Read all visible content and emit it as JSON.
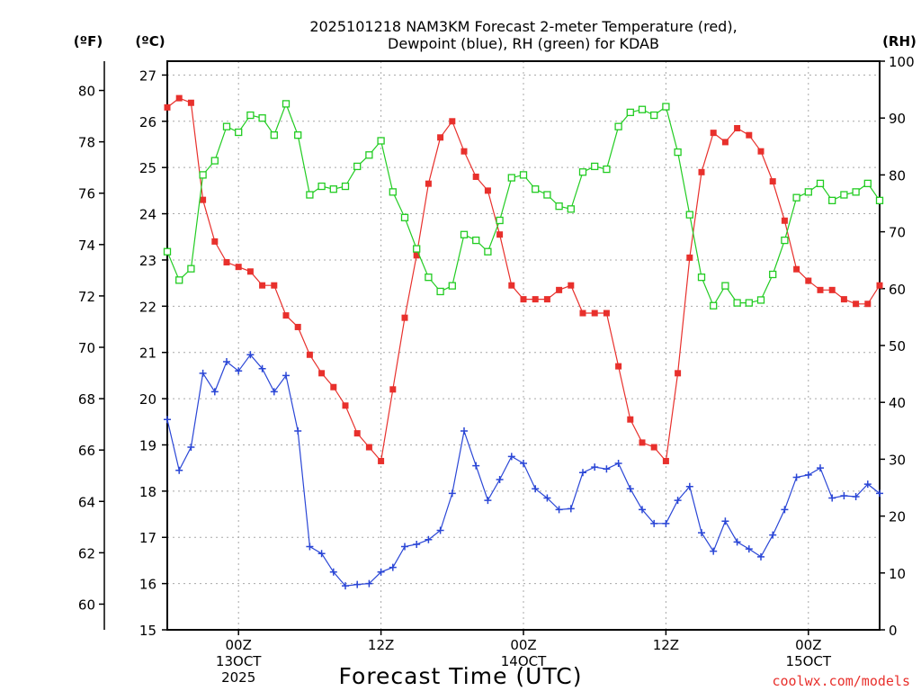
{
  "chart_data": {
    "type": "line",
    "title_line1": "2025101218 NAM3KM Forecast 2-meter Temperature (red),",
    "title_line2": "Dewpoint (blue), RH (green) for KDAB",
    "unit_f": "(ºF)",
    "unit_c": "(ºC)",
    "unit_rh": "(RH)",
    "xlabel": "Forecast Time (UTC)",
    "credit": "coolwx.com/models",
    "c_range": [
      15,
      27.3
    ],
    "rh_range": [
      0,
      100
    ],
    "f_ticks": [
      "60",
      "62",
      "64",
      "66",
      "68",
      "70",
      "72",
      "74",
      "76",
      "78",
      "80"
    ],
    "c_ticks": [
      "15",
      "16",
      "17",
      "18",
      "19",
      "20",
      "21",
      "22",
      "23",
      "24",
      "25",
      "26",
      "27"
    ],
    "rh_ticks": [
      "0",
      "10",
      "20",
      "30",
      "40",
      "50",
      "60",
      "70",
      "80",
      "90",
      "100"
    ],
    "x_ticks": [
      {
        "hour": 6,
        "label": "00Z",
        "sub1": "13OCT",
        "sub2": "2025"
      },
      {
        "hour": 18,
        "label": "12Z",
        "sub1": "",
        "sub2": ""
      },
      {
        "hour": 30,
        "label": "00Z",
        "sub1": "14OCT",
        "sub2": ""
      },
      {
        "hour": 42,
        "label": "12Z",
        "sub1": "",
        "sub2": ""
      },
      {
        "hour": 54,
        "label": "00Z",
        "sub1": "15OCT",
        "sub2": ""
      }
    ],
    "hours": [
      0,
      1,
      2,
      3,
      4,
      5,
      6,
      7,
      8,
      9,
      10,
      11,
      12,
      13,
      14,
      15,
      16,
      17,
      18,
      19,
      20,
      21,
      22,
      23,
      24,
      25,
      26,
      27,
      28,
      29,
      30,
      31,
      32,
      33,
      34,
      35,
      36,
      37,
      38,
      39,
      40,
      41,
      42,
      43,
      44,
      45,
      46,
      47,
      48,
      49,
      50,
      51,
      52,
      53,
      54,
      55,
      56,
      57,
      58,
      59,
      60
    ],
    "series": [
      {
        "name": "Temperature",
        "unit": "C",
        "color": "#e8302c",
        "marker": "filled-square",
        "values": [
          26.3,
          26.5,
          26.4,
          24.3,
          23.4,
          22.95,
          22.85,
          22.75,
          22.45,
          22.45,
          21.8,
          21.55,
          20.95,
          20.55,
          20.25,
          19.85,
          19.25,
          18.95,
          18.65,
          20.2,
          21.75,
          23.1,
          24.65,
          25.65,
          26.0,
          25.35,
          24.8,
          24.5,
          23.55,
          22.45,
          22.15,
          22.15,
          22.15,
          22.35,
          22.45,
          21.85,
          21.85,
          21.85,
          20.7,
          19.55,
          19.05,
          18.95,
          18.65,
          20.55,
          23.05,
          24.9,
          25.75,
          25.55,
          25.85,
          25.7,
          25.35,
          24.7,
          23.85,
          22.8,
          22.55,
          22.35,
          22.35,
          22.15,
          22.05,
          22.05,
          22.45
        ]
      },
      {
        "name": "Dewpoint",
        "unit": "C",
        "color": "#2a46d6",
        "marker": "plus",
        "values": [
          19.55,
          18.45,
          18.95,
          20.55,
          20.15,
          20.8,
          20.6,
          20.95,
          20.65,
          20.15,
          20.5,
          19.3,
          16.8,
          16.65,
          16.25,
          15.95,
          15.98,
          16.0,
          16.25,
          16.35,
          16.8,
          16.85,
          16.95,
          17.15,
          17.95,
          19.3,
          18.55,
          17.8,
          18.25,
          18.75,
          18.6,
          18.05,
          17.85,
          17.6,
          17.62,
          18.4,
          18.52,
          18.48,
          18.6,
          18.05,
          17.6,
          17.3,
          17.3,
          17.8,
          18.1,
          17.1,
          16.7,
          17.35,
          16.9,
          16.75,
          16.58,
          17.05,
          17.6,
          18.3,
          18.35,
          18.5,
          17.85,
          17.9,
          17.88,
          18.15,
          17.95
        ]
      },
      {
        "name": "RH",
        "unit": "%",
        "color": "#22cc22",
        "marker": "open-square",
        "values": [
          66.5,
          61.5,
          63.5,
          80.0,
          82.5,
          88.5,
          87.5,
          90.5,
          90.0,
          87.0,
          92.5,
          87.0,
          76.5,
          78.0,
          77.5,
          78.0,
          81.5,
          83.5,
          86.0,
          77.0,
          72.5,
          67.0,
          62.0,
          59.5,
          60.5,
          69.5,
          68.5,
          66.5,
          72.0,
          79.5,
          80.0,
          77.5,
          76.5,
          74.5,
          74.0,
          80.5,
          81.5,
          81.0,
          88.5,
          91.0,
          91.5,
          90.5,
          92.0,
          84.0,
          73.0,
          62.0,
          57.0,
          60.5,
          57.5,
          57.5,
          58.0,
          62.5,
          68.5,
          76.0,
          77.0,
          78.5,
          75.5,
          76.5,
          77.0,
          78.5,
          75.5
        ]
      }
    ]
  }
}
